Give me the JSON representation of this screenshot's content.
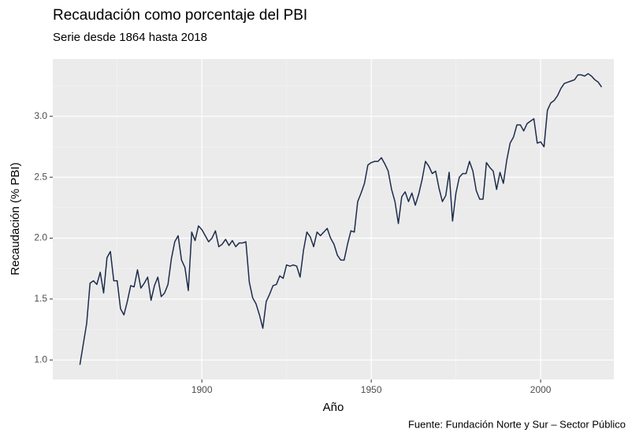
{
  "chart_data": {
    "type": "line",
    "title": "Recaudación como porcentaje del PBI",
    "subtitle": "Serie desde 1864 hasta 2018",
    "x_label": "Año",
    "y_label": "Recaudación (% PBI)",
    "caption": "Fuente: Fundación Norte y Sur – Sector Público",
    "color": "#1d2c4c",
    "grid": true,
    "xlim": [
      1856,
      2021.6
    ],
    "xticks": [
      1900,
      1950,
      2000
    ],
    "ylim": [
      0.84,
      3.47
    ],
    "yticks": [
      {
        "value": 1,
        "label": "1.0"
      },
      1.5,
      {
        "value": 2,
        "label": "2.0"
      },
      2.5,
      {
        "value": 3,
        "label": "3.0"
      }
    ],
    "x": [
      1864,
      1865,
      1866,
      1867,
      1868,
      1869,
      1870,
      1871,
      1872,
      1873,
      1874,
      1875,
      1876,
      1877,
      1878,
      1879,
      1880,
      1881,
      1882,
      1883,
      1884,
      1885,
      1886,
      1887,
      1888,
      1889,
      1890,
      1891,
      1892,
      1893,
      1894,
      1895,
      1896,
      1897,
      1898,
      1899,
      1900,
      1901,
      1902,
      1903,
      1904,
      1905,
      1906,
      1907,
      1908,
      1909,
      1910,
      1911,
      1912,
      1913,
      1914,
      1915,
      1916,
      1917,
      1918,
      1919,
      1920,
      1921,
      1922,
      1923,
      1924,
      1925,
      1926,
      1927,
      1928,
      1929,
      1930,
      1931,
      1932,
      1933,
      1934,
      1935,
      1936,
      1937,
      1938,
      1939,
      1940,
      1941,
      1942,
      1943,
      1944,
      1945,
      1946,
      1947,
      1948,
      1949,
      1950,
      1951,
      1952,
      1953,
      1954,
      1955,
      1956,
      1957,
      1958,
      1959,
      1960,
      1961,
      1962,
      1963,
      1964,
      1965,
      1966,
      1967,
      1968,
      1969,
      1970,
      1971,
      1972,
      1973,
      1974,
      1975,
      1976,
      1977,
      1978,
      1979,
      1980,
      1981,
      1982,
      1983,
      1984,
      1985,
      1986,
      1987,
      1988,
      1989,
      1990,
      1991,
      1992,
      1993,
      1994,
      1995,
      1996,
      1997,
      1998,
      1999,
      2000,
      2001,
      2002,
      2003,
      2004,
      2005,
      2006,
      2007,
      2008,
      2009,
      2010,
      2011,
      2012,
      2013,
      2014,
      2015,
      2016,
      2017,
      2018
    ],
    "values": [
      0.96,
      1.13,
      1.3,
      1.63,
      1.65,
      1.62,
      1.72,
      1.55,
      1.84,
      1.89,
      1.65,
      1.65,
      1.42,
      1.37,
      1.48,
      1.61,
      1.6,
      1.74,
      1.59,
      1.63,
      1.68,
      1.49,
      1.61,
      1.68,
      1.52,
      1.55,
      1.62,
      1.83,
      1.97,
      2.02,
      1.82,
      1.76,
      1.57,
      2.05,
      1.98,
      2.1,
      2.07,
      2.02,
      1.97,
      2.0,
      2.06,
      1.93,
      1.95,
      1.99,
      1.94,
      1.98,
      1.93,
      1.96,
      1.96,
      1.97,
      1.64,
      1.51,
      1.46,
      1.37,
      1.26,
      1.48,
      1.54,
      1.61,
      1.62,
      1.69,
      1.67,
      1.78,
      1.77,
      1.78,
      1.77,
      1.68,
      1.9,
      2.05,
      2.01,
      1.93,
      2.05,
      2.02,
      2.05,
      2.08,
      2.0,
      1.95,
      1.86,
      1.82,
      1.82,
      1.95,
      2.06,
      2.05,
      2.3,
      2.37,
      2.45,
      2.6,
      2.62,
      2.63,
      2.63,
      2.66,
      2.61,
      2.55,
      2.4,
      2.3,
      2.12,
      2.34,
      2.38,
      2.3,
      2.37,
      2.27,
      2.36,
      2.48,
      2.63,
      2.59,
      2.53,
      2.55,
      2.41,
      2.3,
      2.35,
      2.54,
      2.14,
      2.37,
      2.5,
      2.53,
      2.53,
      2.63,
      2.55,
      2.39,
      2.32,
      2.32,
      2.62,
      2.58,
      2.55,
      2.4,
      2.54,
      2.45,
      2.64,
      2.78,
      2.83,
      2.93,
      2.93,
      2.88,
      2.94,
      2.96,
      2.98,
      2.78,
      2.79,
      2.75,
      3.05,
      3.11,
      3.13,
      3.17,
      3.23,
      3.27,
      3.28,
      3.29,
      3.3,
      3.34,
      3.34,
      3.33,
      3.35,
      3.33,
      3.3,
      3.28,
      3.24
    ]
  }
}
